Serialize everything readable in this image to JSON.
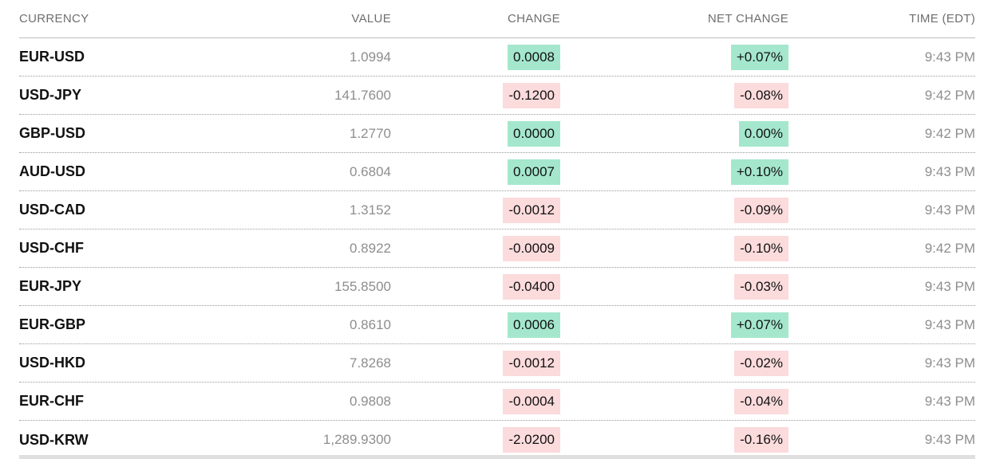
{
  "colors": {
    "positive_bg": "#a4e7cd",
    "negative_bg": "#fbdbdc",
    "badge_text": "#111111",
    "header_text": "#6f6f6f",
    "muted_text": "#8e8e8e"
  },
  "chart_data": {
    "type": "table",
    "columns": [
      "CURRENCY",
      "VALUE",
      "CHANGE",
      "NET CHANGE",
      "TIME (EDT)"
    ],
    "rows": [
      {
        "currency": "EUR-USD",
        "value": "1.0994",
        "change": "0.0008",
        "net_change": "+0.07%",
        "direction": "up",
        "time": "9:43 PM"
      },
      {
        "currency": "USD-JPY",
        "value": "141.7600",
        "change": "-0.1200",
        "net_change": "-0.08%",
        "direction": "down",
        "time": "9:42 PM"
      },
      {
        "currency": "GBP-USD",
        "value": "1.2770",
        "change": "0.0000",
        "net_change": "0.00%",
        "direction": "up",
        "time": "9:42 PM"
      },
      {
        "currency": "AUD-USD",
        "value": "0.6804",
        "change": "0.0007",
        "net_change": "+0.10%",
        "direction": "up",
        "time": "9:43 PM"
      },
      {
        "currency": "USD-CAD",
        "value": "1.3152",
        "change": "-0.0012",
        "net_change": "-0.09%",
        "direction": "down",
        "time": "9:43 PM"
      },
      {
        "currency": "USD-CHF",
        "value": "0.8922",
        "change": "-0.0009",
        "net_change": "-0.10%",
        "direction": "down",
        "time": "9:42 PM"
      },
      {
        "currency": "EUR-JPY",
        "value": "155.8500",
        "change": "-0.0400",
        "net_change": "-0.03%",
        "direction": "down",
        "time": "9:43 PM"
      },
      {
        "currency": "EUR-GBP",
        "value": "0.8610",
        "change": "0.0006",
        "net_change": "+0.07%",
        "direction": "up",
        "time": "9:43 PM"
      },
      {
        "currency": "USD-HKD",
        "value": "7.8268",
        "change": "-0.0012",
        "net_change": "-0.02%",
        "direction": "down",
        "time": "9:43 PM"
      },
      {
        "currency": "EUR-CHF",
        "value": "0.9808",
        "change": "-0.0004",
        "net_change": "-0.04%",
        "direction": "down",
        "time": "9:43 PM"
      },
      {
        "currency": "USD-KRW",
        "value": "1,289.9300",
        "change": "-2.0200",
        "net_change": "-0.16%",
        "direction": "down",
        "time": "9:43 PM"
      }
    ]
  }
}
